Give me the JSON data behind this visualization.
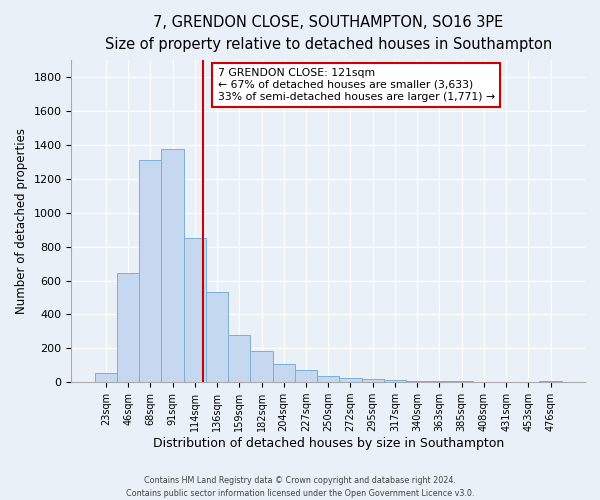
{
  "title": "7, GRENDON CLOSE, SOUTHAMPTON, SO16 3PE",
  "subtitle": "Size of property relative to detached houses in Southampton",
  "xlabel": "Distribution of detached houses by size in Southampton",
  "ylabel": "Number of detached properties",
  "bar_labels": [
    "23sqm",
    "46sqm",
    "68sqm",
    "91sqm",
    "114sqm",
    "136sqm",
    "159sqm",
    "182sqm",
    "204sqm",
    "227sqm",
    "250sqm",
    "272sqm",
    "295sqm",
    "317sqm",
    "340sqm",
    "363sqm",
    "385sqm",
    "408sqm",
    "431sqm",
    "453sqm",
    "476sqm"
  ],
  "bar_values": [
    55,
    645,
    1310,
    1375,
    850,
    530,
    280,
    185,
    105,
    70,
    35,
    25,
    20,
    15,
    10,
    8,
    5,
    3,
    2,
    1,
    5
  ],
  "bar_color": "#c5d8f0",
  "bar_edge_color": "#7aafd4",
  "ylim": [
    0,
    1900
  ],
  "yticks": [
    0,
    200,
    400,
    600,
    800,
    1000,
    1200,
    1400,
    1600,
    1800
  ],
  "vline_x_idx": 4,
  "vline_x_offset": 0.36,
  "vline_color": "#cc0000",
  "annotation_title": "7 GRENDON CLOSE: 121sqm",
  "annotation_line1": "← 67% of detached houses are smaller (3,633)",
  "annotation_line2": "33% of semi-detached houses are larger (1,771) →",
  "annotation_box_color": "#ffffff",
  "annotation_box_edge_color": "#cc0000",
  "footer1": "Contains HM Land Registry data © Crown copyright and database right 2024.",
  "footer2": "Contains public sector information licensed under the Open Government Licence v3.0.",
  "background_color": "#eaf0f8",
  "plot_background": "#eaf0f8",
  "grid_color": "#ffffff"
}
